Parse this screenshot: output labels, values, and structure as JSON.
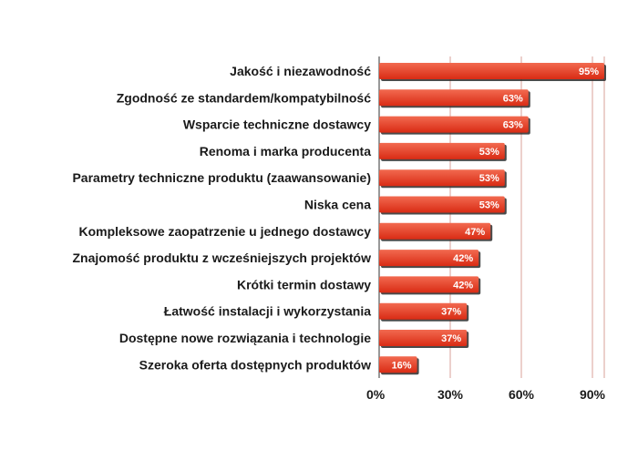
{
  "chart_data": {
    "type": "bar",
    "orientation": "horizontal",
    "categories": [
      "Jakość i niezawodność",
      "Zgodność ze standardem/kompatybilność",
      "Wsparcie techniczne dostawcy",
      "Renoma i marka producenta",
      "Parametry techniczne produktu (zaawansowanie)",
      "Niska cena",
      "Kompleksowe zaopatrzenie u jednego dostawcy",
      "Znajomość produktu z wcześniejszych projektów",
      "Krótki termin dostawy",
      "Łatwość instalacji i wykorzystania",
      "Dostępne nowe rozwiązania i technologie",
      "Szeroka oferta dostępnych produktów"
    ],
    "values": [
      95,
      63,
      63,
      53,
      53,
      53,
      47,
      42,
      42,
      37,
      37,
      16
    ],
    "data_labels": [
      "95%",
      "63%",
      "63%",
      "53%",
      "53%",
      "53%",
      "47%",
      "42%",
      "42%",
      "37%",
      "37%",
      "16%"
    ],
    "xlim": [
      0,
      95
    ],
    "xticks": [
      0,
      30,
      60,
      90
    ],
    "xtick_labels": [
      "0%",
      "30%",
      "60%",
      "90%"
    ],
    "grid": "vertical",
    "legend": "none",
    "colors": {
      "bar_top": "#f26a50",
      "bar_bottom": "#d92b14",
      "bar_shadow": "#2a2a2a",
      "grid": "#d9a29a",
      "axis": "#555555"
    }
  }
}
